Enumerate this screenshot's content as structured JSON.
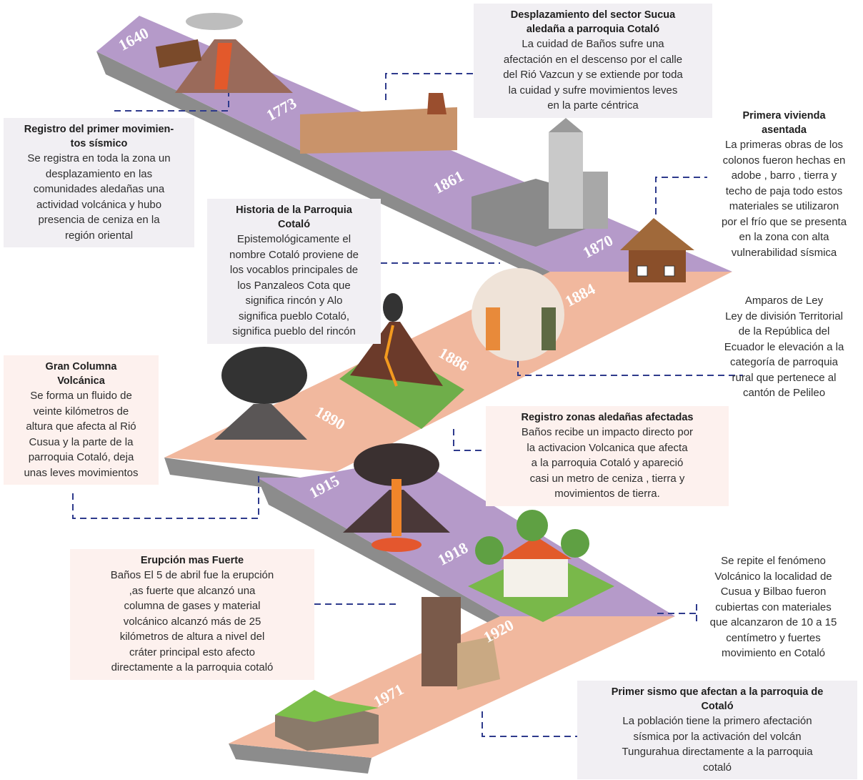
{
  "years": [
    "1640",
    "1773",
    "1861",
    "1870",
    "1884",
    "1886",
    "1890",
    "1915",
    "1918",
    "1920",
    "1971"
  ],
  "events": [
    {
      "title": [
        "Registro del primer movimien-",
        "tos sísmico"
      ],
      "body": [
        "Se registra en toda la zona un",
        "desplazamiento en las",
        "comunidades aledañas una",
        "actividad volcánica y hubo",
        "presencia de ceniza en la",
        "región oriental"
      ]
    },
    {
      "title": [
        "Desplazamiento del sector Sucua",
        "aledaña a parroquia Cotaló"
      ],
      "body": [
        "La cuidad de Baños sufre una",
        "afectación en el descenso por el calle",
        "del Rió Vazcun y se extiende por toda",
        "la cuidad y sufre movimientos leves",
        "en la parte céntrica"
      ]
    },
    {
      "title": [
        "Primera vivienda",
        "asentada"
      ],
      "body": [
        "La primeras obras de los",
        "colonos fueron hechas en",
        "adobe , barro , tierra y",
        "techo de paja todo estos",
        "materiales se utilizaron",
        "por el frío que se presenta",
        "en la zona con alta",
        "vulnerabilidad sísmica"
      ]
    },
    {
      "title": [
        "Historia de la Parroquia",
        "Cotaló"
      ],
      "body": [
        "Epistemológicamente el",
        "nombre Cotaló proviene de",
        "los vocablos principales  de",
        "los Panzaleos Cota que",
        "significa rincón y Alo",
        "significa pueblo Cotaló,",
        "significa pueblo del rincón"
      ]
    },
    {
      "body": [
        "Amparos de Ley",
        "Ley de división Territorial",
        "de la República del",
        "Ecuador le elevación a la",
        "categoría de parroquia",
        "rural que pertenece al",
        "cantón de Pelileo"
      ]
    },
    {
      "title": [
        "Gran Columna",
        "Volcánica"
      ],
      "body": [
        "Se forma un fluido de",
        "veinte kilómetros de",
        "altura que afecta al Rió",
        "Cusua y la parte de la",
        "parroquia Cotaló, deja",
        "unas leves movimientos"
      ]
    },
    {
      "title": [
        "Registro  zonas aledañas afectadas"
      ],
      "body": [
        "Baños recibe un impacto directo por",
        "la activacion Volcanica  que afecta",
        "a la parroquia Cotaló y apareció",
        "casi un metro de ceniza , tierra y",
        "movimientos de tierra."
      ]
    },
    {
      "title": [
        "Erupción mas Fuerte"
      ],
      "body": [
        "Baños El 5 de abril fue la erupción",
        ",as fuerte que alcanzó una",
        "columna de gases y material",
        "volcánico alcanzó más de 25",
        "kilómetros de altura a nivel del",
        "cráter principal esto afecto",
        "directamente a la parroquia cotaló"
      ]
    },
    {
      "body": [
        "Se repite el fenómeno",
        "Volcánico la localidad de",
        "Cusua y Bilbao fueron",
        "cubiertas con materiales",
        "que alcanzaron de 10 a 15",
        "centímetro y fuertes",
        "movimiento en Cotaló"
      ]
    },
    {
      "title": [
        "Primer sismo que afectan a la parroquia de",
        "Cotaló"
      ],
      "body": [
        "La población tiene la primero afectación",
        "sísmica por la activación del volcán",
        "Tungurahua directamente a la parroquia",
        "cotaló"
      ]
    }
  ]
}
